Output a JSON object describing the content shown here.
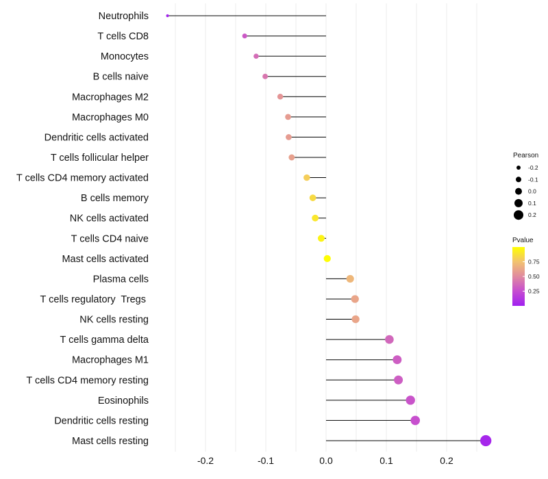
{
  "chart_data": {
    "type": "lollipop",
    "title": "",
    "xlabel": "",
    "ylabel": "",
    "xlim": [
      -0.27,
      0.27
    ],
    "x_ticks": [
      -0.2,
      -0.1,
      0.0,
      0.1,
      0.2
    ],
    "x_tick_labels": [
      "-0.2",
      "-0.1",
      "0.0",
      "0.1",
      "0.2"
    ],
    "x_gridlines_minor": [
      -0.25,
      -0.15,
      -0.05,
      0.05,
      0.15,
      0.25
    ],
    "baseline": 0,
    "categories": [
      "Neutrophils",
      "T cells CD8",
      "Monocytes",
      "B cells naive",
      "Macrophages M2",
      "Macrophages M0",
      "Dendritic cells activated",
      "T cells follicular helper",
      "T cells CD4 memory activated",
      "B cells memory",
      "NK cells activated",
      "T cells CD4 naive",
      "Mast cells activated",
      "Plasma cells",
      "T cells regulatory  Tregs ",
      "NK cells resting",
      "T cells gamma delta",
      "Macrophages M1",
      "T cells CD4 memory resting",
      "Eosinophils",
      "Dendritic cells resting",
      "Mast cells resting"
    ],
    "values": [
      -0.263,
      -0.135,
      -0.116,
      -0.101,
      -0.076,
      -0.063,
      -0.062,
      -0.057,
      -0.032,
      -0.022,
      -0.018,
      -0.008,
      0.002,
      0.04,
      0.048,
      0.049,
      0.105,
      0.118,
      0.12,
      0.14,
      0.148,
      0.265
    ],
    "pvalues": [
      0.02,
      0.3,
      0.38,
      0.42,
      0.55,
      0.58,
      0.58,
      0.6,
      0.8,
      0.85,
      0.9,
      0.95,
      0.99,
      0.7,
      0.62,
      0.62,
      0.36,
      0.32,
      0.32,
      0.28,
      0.26,
      0.04
    ],
    "size_legend": {
      "title": "Pearson",
      "values": [
        -0.2,
        -0.1,
        0.0,
        0.1,
        0.2
      ],
      "labels": [
        "-0.2",
        "-0.1",
        "0.0",
        "0.1",
        "0.2"
      ]
    },
    "color_legend": {
      "title": "Pvalue",
      "range": [
        0.0,
        1.0
      ],
      "ticks": [
        0.25,
        0.5,
        0.75
      ],
      "labels": [
        "0.25",
        "0.50",
        "0.75"
      ],
      "colormap": "plasma",
      "low_color": "#A020F0",
      "high_color": "#FFFF00"
    },
    "colors": {
      "stem": "#000000",
      "gridline": "#EBEBEB"
    }
  }
}
